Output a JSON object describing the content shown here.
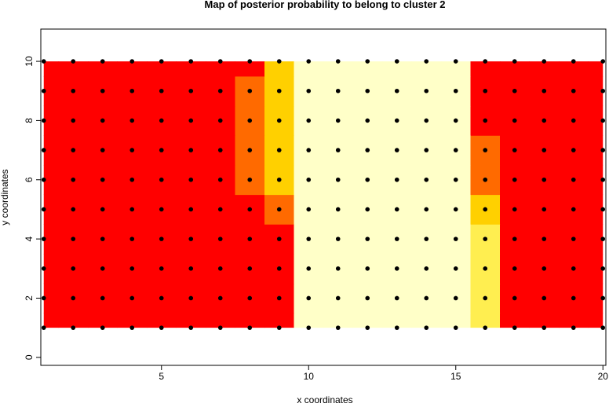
{
  "chart_data": {
    "type": "heatmap",
    "title": "Map of posterior probability to belong to cluster  2",
    "x_label": "x coordinates",
    "y_label": "y coordinates",
    "grid_x": [
      1,
      2,
      3,
      4,
      5,
      6,
      7,
      8,
      9,
      10,
      11,
      12,
      13,
      14,
      15,
      16,
      17,
      18,
      19,
      20
    ],
    "grid_y": [
      1,
      2,
      3,
      4,
      5,
      6,
      7,
      8,
      9,
      10
    ],
    "z": [
      [
        0,
        0,
        0,
        0,
        0,
        0,
        0,
        0,
        0.05,
        0.8,
        1,
        1,
        1,
        1,
        1,
        0.7,
        0,
        0,
        0,
        0
      ],
      [
        0,
        0,
        0,
        0,
        0,
        0,
        0,
        0,
        0.05,
        0.85,
        1,
        1,
        1,
        1,
        1,
        0.7,
        0,
        0,
        0,
        0
      ],
      [
        0,
        0,
        0,
        0,
        0,
        0,
        0,
        0,
        0.05,
        1,
        1,
        1,
        1,
        1,
        1,
        0.65,
        0,
        0,
        0,
        0
      ],
      [
        0,
        0,
        0,
        0,
        0,
        0,
        0,
        0,
        0.1,
        1,
        1,
        1,
        1,
        1,
        1,
        0.6,
        0,
        0,
        0,
        0
      ],
      [
        0,
        0,
        0,
        0,
        0,
        0,
        0,
        0.05,
        0.3,
        1,
        1,
        1,
        1,
        1,
        1,
        0.5,
        0,
        0,
        0,
        0
      ],
      [
        0,
        0,
        0,
        0,
        0,
        0,
        0,
        0.3,
        0.5,
        1,
        1,
        1,
        1,
        1,
        1,
        0.3,
        0,
        0,
        0,
        0
      ],
      [
        0,
        0,
        0,
        0,
        0,
        0,
        0,
        0.35,
        0.55,
        1,
        1,
        1,
        1,
        1,
        1,
        0.2,
        0,
        0,
        0,
        0
      ],
      [
        0,
        0,
        0,
        0,
        0,
        0,
        0,
        0.3,
        0.55,
        1,
        1,
        1,
        1,
        1,
        1,
        0.15,
        0,
        0,
        0,
        0
      ],
      [
        0,
        0,
        0,
        0,
        0,
        0,
        0,
        0.2,
        0.5,
        1,
        1,
        1,
        1,
        1,
        1,
        0.1,
        0,
        0,
        0,
        0
      ],
      [
        0,
        0,
        0,
        0,
        0,
        0,
        0,
        0.1,
        0.45,
        1,
        1,
        1,
        1,
        1,
        0.9,
        0.05,
        0,
        0,
        0,
        0
      ]
    ],
    "levels": [
      0,
      0.2,
      0.4,
      0.6,
      0.8,
      1
    ],
    "colors": [
      "#ff0000",
      "#ff6a00",
      "#ffd000",
      "#ffee50",
      "#ffffc8"
    ],
    "point_color": "#000000",
    "xlim": [
      0.9,
      20.1
    ],
    "ylim": [
      -0.27,
      11.09
    ],
    "xticks": [
      5,
      10,
      15,
      20
    ],
    "yticks": [
      0,
      2,
      4,
      6,
      8,
      10
    ]
  }
}
